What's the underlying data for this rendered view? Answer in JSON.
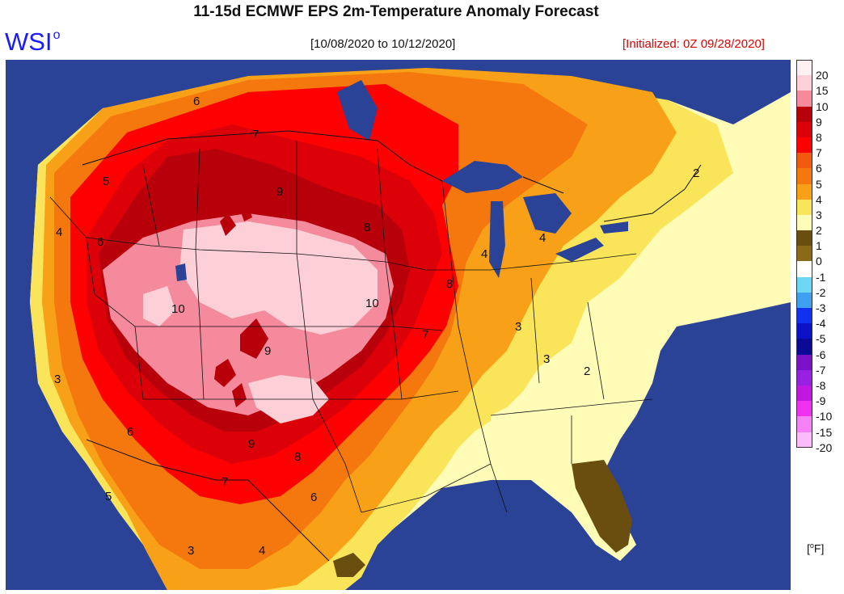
{
  "title": "11-15d ECMWF EPS 2m-Temperature Anomaly Forecast",
  "logo": {
    "text": "WSI",
    "superscript": "o"
  },
  "period": "[10/08/2020 to 10/12/2020]",
  "initialized": "[Initialized: 0Z 09/28/2020]",
  "unit": {
    "open": "[",
    "deg": "o",
    "close": "F]"
  },
  "colors": {
    "ocean": "#2a4396",
    "title": "#111111",
    "logo": "#1a1aff",
    "initialized": "#e00000"
  },
  "legend": [
    {
      "label": "20",
      "color": "#fff0f2"
    },
    {
      "label": "15",
      "color": "#fdd0d8"
    },
    {
      "label": "10",
      "color": "#f58a9c"
    },
    {
      "label": "9",
      "color": "#b8000a"
    },
    {
      "label": "8",
      "color": "#dc0008"
    },
    {
      "label": "7",
      "color": "#ff0000"
    },
    {
      "label": "6",
      "color": "#f25a10"
    },
    {
      "label": "5",
      "color": "#f5780e"
    },
    {
      "label": "4",
      "color": "#f7a018"
    },
    {
      "label": "3",
      "color": "#fae55a"
    },
    {
      "label": "2",
      "color": "#fffcb8"
    },
    {
      "label": "1",
      "color": "#6a4e10"
    },
    {
      "label": "0",
      "color": "#8a6a18"
    },
    {
      "label": "-1",
      "color": "#ffffff"
    },
    {
      "label": "-2",
      "color": "#6ed6f5"
    },
    {
      "label": "-3",
      "color": "#3fa0f0"
    },
    {
      "label": "-4",
      "color": "#1230f0"
    },
    {
      "label": "-5",
      "color": "#0c12c8"
    },
    {
      "label": "-6",
      "color": "#0a0a96"
    },
    {
      "label": "-7",
      "color": "#7a10c8"
    },
    {
      "label": "-8",
      "color": "#9820e0"
    },
    {
      "label": "-9",
      "color": "#c018e0"
    },
    {
      "label": "-10",
      "color": "#f032f0"
    },
    {
      "label": "-15",
      "color": "#f582f5"
    },
    {
      "label": "-20",
      "color": "#fcbcfc"
    }
  ],
  "contour_labels": [
    "6",
    "7",
    "5",
    "4",
    "6",
    "9",
    "8",
    "10",
    "10",
    "9",
    "8",
    "7",
    "9",
    "8",
    "7",
    "6",
    "6",
    "5",
    "4",
    "3",
    "2",
    "3",
    "2",
    "3",
    "4",
    "4",
    "3"
  ]
}
